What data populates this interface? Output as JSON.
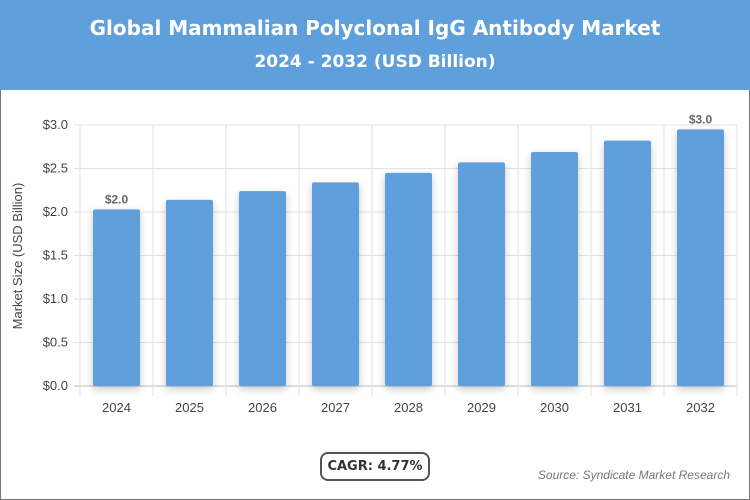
{
  "header": {
    "title": "Global Mammalian Polyclonal IgG Antibody Market",
    "subtitle": "2024 - 2032 (USD Billion)"
  },
  "chart_data": {
    "type": "bar",
    "title": "Global Mammalian Polyclonal IgG Antibody Market",
    "subtitle": "2024 - 2032 (USD Billion)",
    "xlabel": "",
    "ylabel": "Market Size (USD Billion)",
    "categories": [
      "2024",
      "2025",
      "2026",
      "2027",
      "2028",
      "2029",
      "2030",
      "2031",
      "2032"
    ],
    "values": [
      2.03,
      2.14,
      2.24,
      2.34,
      2.45,
      2.57,
      2.69,
      2.82,
      2.95
    ],
    "data_labels": {
      "0": "$2.0",
      "8": "$3.0"
    },
    "yticks": [
      "$0.0",
      "$0.5",
      "$1.0",
      "$1.5",
      "$2.0",
      "$2.5",
      "$3.0"
    ],
    "ylim": [
      0,
      3
    ],
    "grid": true,
    "bar_color": "#5e9fdc"
  },
  "footer": {
    "cagr": "CAGR: 4.77%",
    "source": "Source: Syndicate Market Research"
  }
}
